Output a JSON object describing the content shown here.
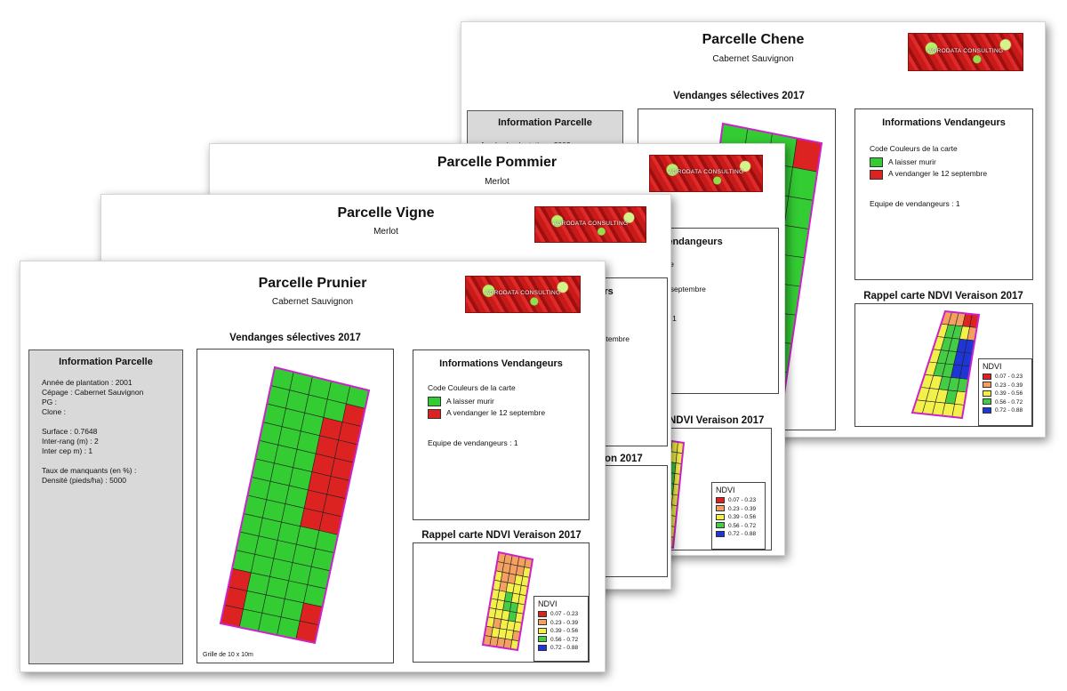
{
  "colors": {
    "keep": "#33cc33",
    "harvest": "#dd2222",
    "parcel_outline": "#cc22cc",
    "ndvi": [
      "#dd2222",
      "#f4a060",
      "#f4f04a",
      "#44cc44",
      "#1f36d6"
    ]
  },
  "logo_text": "AGRODATA CONSULTING",
  "ndvi_legend": {
    "title": "NDVI",
    "classes": [
      "0.07 - 0.23",
      "0.23 - 0.39",
      "0.39 - 0.56",
      "0.56 - 0.72",
      "0.72 - 0.88"
    ]
  },
  "sheets": {
    "chene": {
      "title": "Parcelle Chene",
      "variety": "Cabernet Sauvignon",
      "map_heading": "Vendanges sélectives 2017",
      "info_heading": "Information Parcelle",
      "info_line": "Année de plantation : 2002",
      "vend_heading": "Informations Vendangeurs",
      "code_label": "Code Couleurs de la carte",
      "keep_label": "A laisser murir",
      "harvest_label": "A vendanger le 12 septembre",
      "team": "Equipe de vendangeurs : 1",
      "ndvi_heading": "Rappel carte NDVI Veraison 2017"
    },
    "pommier": {
      "title": "Parcelle Pommier",
      "variety": "Merlot",
      "vend_heading_part": "ons Vendangeurs",
      "line1": "e la carte",
      "line2": "urir",
      "line3": "er le 12 septembre",
      "team_part": "ngeurs : 1",
      "ndvi_heading_part": "NDVI Veraison 2017"
    },
    "vigne": {
      "title": "Parcelle Vigne",
      "variety": "Merlot",
      "vend_heading_part": "mateurs",
      "line1": "arte",
      "line3": "le 12 septembre",
      "team_part": ": 1",
      "ndvi_heading_part": "aison 2017"
    },
    "prunier": {
      "title": "Parcelle Prunier",
      "variety": "Cabernet Sauvignon",
      "map_heading": "Vendanges sélectives 2017",
      "info_heading": "Information Parcelle",
      "info_lines": [
        "Année de plantation : 2001",
        "Cépage : Cabernet Sauvignon",
        "PG :",
        "Clone :",
        "",
        "Surface : 0.7648",
        "Inter-rang (m) : 2",
        "Inter cep m) : 1",
        "",
        "Taux de manquants (en %) :",
        "Densité (pieds/ha) : 5000"
      ],
      "vend_heading": "Informations Vendangeurs",
      "code_label": "Code Couleurs de la carte",
      "keep_label": "A laisser murir",
      "harvest_label": "A vendanger le 12 septembre",
      "team": "Equipe de vendangeurs : 1",
      "ndvi_heading": "Rappel carte NDVI Veraison 2017",
      "grid_note": "Grille de 10 x 10m"
    }
  },
  "maps": {
    "prunier_selective": {
      "rows": 14,
      "cols": 5,
      "grid": [
        "kkkkk",
        "kkkkh",
        "kkkhh",
        "kkkhh",
        "kkkhh",
        "kkkhh",
        "kkkhh",
        "kkkhh",
        "kkkkk",
        "kkkkk",
        "kkkkk",
        "hkkkk",
        "hkkkh",
        "hkkkh"
      ]
    },
    "chene_selective": {
      "rows": 10,
      "cols": 4,
      "grid": [
        "kkkh",
        "kkkk",
        "kkkk",
        "kkkk",
        "kkkk",
        "kkkk",
        "kkkk",
        "kkkk",
        "kkkk",
        "kkkk"
      ]
    },
    "prunier_ndvi": {
      "rows": 10,
      "cols": 5,
      "grid": [
        "11111",
        "11112",
        "21122",
        "21222",
        "22322",
        "22332",
        "22232",
        "21222",
        "12221",
        "11112"
      ]
    },
    "pommier_ndvi": {
      "rows": 10,
      "cols": 6,
      "grid": [
        "222222",
        "233322",
        "233332",
        "233332",
        "223332",
        "222322",
        "222222",
        "222222",
        "221122",
        "111111"
      ]
    },
    "chene_ndvi": {
      "rows": 8,
      "cols": 5,
      "grid": [
        "11100",
        "23321",
        "23344",
        "23344",
        "23344",
        "22333",
        "22232",
        "22222"
      ]
    }
  }
}
